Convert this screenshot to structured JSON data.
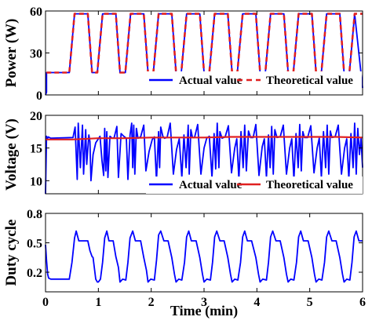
{
  "chart_data": {
    "type": "line",
    "xlabel": "Time (min)",
    "x_ticks": [
      "0",
      "1",
      "2",
      "3",
      "4",
      "5",
      "6"
    ],
    "xlim": [
      0,
      6
    ],
    "panels": [
      {
        "ylabel": "Power (W)",
        "ylim": [
          0,
          60
        ],
        "y_ticks": [
          "0",
          "30",
          "60"
        ],
        "legend": {
          "placement": "bottom-right",
          "entries": [
            "Actual value",
            "Theoretical value"
          ]
        },
        "series": [
          {
            "name": "Actual value",
            "color": "#0000ff",
            "style": "solid",
            "x": [
              0,
              0.02,
              0.02,
              0.45,
              0.55,
              0.8,
              0.88,
              0.98,
              1.08,
              1.33,
              1.41,
              1.51,
              1.61,
              1.86,
              1.94,
              2.04,
              2.14,
              2.39,
              2.47,
              2.57,
              2.67,
              2.92,
              3.0,
              3.1,
              3.2,
              3.45,
              3.53,
              3.63,
              3.73,
              3.98,
              4.06,
              4.16,
              4.26,
              4.51,
              4.59,
              4.69,
              4.79,
              5.04,
              5.12,
              5.22,
              5.32,
              5.57,
              5.65,
              5.75,
              5.85,
              6.0
            ],
            "y": [
              0,
              2,
              16,
              16,
              58,
              58,
              16,
              16,
              58,
              58,
              16,
              16,
              58,
              58,
              16,
              16,
              58,
              58,
              16,
              16,
              58,
              58,
              16,
              16,
              58,
              58,
              16,
              16,
              58,
              58,
              16,
              16,
              58,
              58,
              16,
              16,
              58,
              58,
              16,
              16,
              58,
              58,
              16,
              16,
              58,
              5
            ]
          },
          {
            "name": "Theoretical value",
            "color": "#e02020",
            "style": "dashed",
            "x": [
              0.02,
              0.45,
              0.55,
              0.8,
              0.88,
              0.98,
              1.08,
              1.33,
              1.41,
              1.51,
              1.61,
              1.86,
              1.94,
              2.04,
              2.14,
              2.39,
              2.47,
              2.57,
              2.67,
              2.92,
              3.0,
              3.1,
              3.2,
              3.45,
              3.53,
              3.63,
              3.73,
              3.98,
              4.06,
              4.16,
              4.26,
              4.51,
              4.59,
              4.69,
              4.79,
              5.04,
              5.12,
              5.22,
              5.32,
              5.57,
              5.65,
              5.75,
              5.85,
              6.0
            ],
            "y": [
              16,
              16,
              58,
              58,
              16,
              16,
              58,
              58,
              16,
              16,
              58,
              58,
              16,
              16,
              58,
              58,
              16,
              16,
              58,
              58,
              16,
              16,
              58,
              58,
              16,
              16,
              58,
              58,
              16,
              16,
              58,
              58,
              16,
              16,
              58,
              58,
              16,
              16,
              58,
              58,
              16,
              16,
              58,
              58
            ]
          }
        ]
      },
      {
        "ylabel": "Voltage (V)",
        "ylim": [
          8,
          20
        ],
        "y_ticks": [
          "10",
          "15",
          "20"
        ],
        "legend": {
          "placement": "bottom-right",
          "entries": [
            "Actual value",
            "Theoretical value"
          ]
        },
        "series": [
          {
            "name": "Actual value",
            "color": "#0000ff",
            "style": "solid",
            "x": [
              0,
              0.02,
              0.03,
              0.05,
              0.1,
              0.52,
              0.56,
              0.6,
              0.62,
              0.66,
              0.7,
              0.72,
              0.76,
              0.78,
              0.82,
              0.84,
              0.86,
              0.9,
              0.95,
              1.0,
              1.03,
              1.07,
              1.1,
              1.12,
              1.14,
              1.16,
              1.18,
              1.22,
              1.26,
              1.3,
              1.35,
              1.38,
              1.43,
              1.48,
              1.53,
              1.56,
              1.6,
              1.63,
              1.65,
              1.67,
              1.69,
              1.72,
              1.75,
              1.8,
              1.86,
              1.9,
              1.96,
              2.02,
              2.06,
              2.1,
              2.14,
              2.16,
              2.18,
              2.22,
              2.25,
              2.3,
              2.36,
              2.42,
              2.48,
              2.53,
              2.58,
              2.62,
              2.66,
              2.7,
              2.72,
              2.75,
              2.78,
              2.82,
              2.88,
              2.94,
              3.0,
              3.05,
              3.1,
              3.15,
              3.19,
              3.22,
              3.25,
              3.28,
              3.3,
              3.34,
              3.4,
              3.46,
              3.52,
              3.58,
              3.62,
              3.66,
              3.7,
              3.74,
              3.77,
              3.8,
              3.84,
              3.88,
              3.93,
              3.98,
              4.04,
              4.1,
              4.14,
              4.18,
              4.22,
              4.25,
              4.28,
              4.31,
              4.34,
              4.38,
              4.44,
              4.5,
              4.56,
              4.62,
              4.66,
              4.7,
              4.74,
              4.78,
              4.81,
              4.84,
              4.87,
              4.9,
              4.96,
              5.02,
              5.08,
              5.14,
              5.18,
              5.22,
              5.26,
              5.3,
              5.33,
              5.36,
              5.39,
              5.42,
              5.48,
              5.54,
              5.6,
              5.66,
              5.7,
              5.74,
              5.78,
              5.82,
              5.85,
              5.88,
              5.91,
              5.94,
              5.97,
              6.0
            ],
            "y": [
              8,
              16.8,
              16.3,
              16.7,
              16.5,
              16.6,
              18.2,
              10.2,
              18.8,
              12.0,
              18.5,
              11.0,
              17.8,
              12.5,
              17.0,
              16.0,
              10.0,
              14.0,
              15.8,
              16.4,
              16.8,
              13.0,
              10.8,
              18.0,
              11.5,
              17.5,
              10.5,
              16.8,
              16.5,
              16.6,
              18.3,
              10.5,
              17.2,
              16.8,
              16.5,
              10.2,
              17.0,
              18.8,
              12.0,
              18.5,
              11.0,
              18.0,
              16.5,
              16.7,
              18.5,
              11.5,
              14.5,
              16.3,
              16.7,
              10.0,
              17.5,
              12.0,
              18.2,
              16.8,
              16.5,
              16.6,
              18.8,
              11.0,
              14.8,
              16.4,
              10.5,
              17.0,
              12.0,
              18.5,
              11.0,
              17.8,
              16.6,
              16.6,
              18.6,
              11.0,
              15.0,
              16.5,
              16.8,
              10.5,
              17.2,
              11.8,
              18.8,
              12.0,
              17.5,
              16.5,
              16.7,
              18.4,
              11.2,
              15.0,
              16.4,
              10.2,
              17.5,
              12.0,
              18.5,
              11.5,
              17.6,
              16.6,
              16.6,
              18.6,
              10.8,
              15.2,
              16.4,
              10.5,
              17.0,
              12.0,
              18.3,
              11.0,
              17.8,
              16.6,
              16.7,
              18.5,
              11.0,
              15.0,
              16.4,
              10.2,
              17.2,
              12.0,
              18.6,
              11.5,
              17.5,
              16.6,
              16.6,
              18.4,
              11.2,
              15.0,
              16.5,
              10.5,
              17.5,
              12.0,
              18.5,
              11.0,
              17.6,
              16.6,
              16.7,
              18.5,
              11.0,
              15.0,
              16.4,
              10.3,
              17.2,
              12.0,
              18.8,
              11.0,
              18.0,
              14.0,
              16.5,
              12.0
            ]
          },
          {
            "name": "Theoretical value",
            "color": "#e02020",
            "style": "solid",
            "x": [
              0,
              0.5,
              1.0,
              1.5,
              2.0,
              2.5,
              3.0,
              3.5,
              4.0,
              4.5,
              5.0,
              5.5,
              6.0
            ],
            "y": [
              16.3,
              16.3,
              16.5,
              16.5,
              16.6,
              16.6,
              16.6,
              16.7,
              16.7,
              16.7,
              16.7,
              16.7,
              16.6
            ]
          }
        ]
      },
      {
        "ylabel": "Duty cycle",
        "ylim": [
          0,
          0.8
        ],
        "y_ticks": [
          "0.2",
          "0.5",
          "0.8"
        ],
        "series": [
          {
            "name": "Duty cycle",
            "color": "#0000ff",
            "style": "solid",
            "x": [
              0,
              0.02,
              0.04,
              0.06,
              0.1,
              0.45,
              0.5,
              0.55,
              0.58,
              0.63,
              0.7,
              0.8,
              0.84,
              0.88,
              0.9,
              0.95,
              0.98,
              1.0,
              1.04,
              1.08,
              1.12,
              1.16,
              1.2,
              1.28,
              1.33,
              1.38,
              1.41,
              1.46,
              1.52,
              1.56,
              1.6,
              1.65,
              1.7,
              1.8,
              1.86,
              1.91,
              1.94,
              1.99,
              2.06,
              2.1,
              2.14,
              2.18,
              2.24,
              2.32,
              2.39,
              2.44,
              2.47,
              2.52,
              2.58,
              2.63,
              2.67,
              2.71,
              2.76,
              2.85,
              2.92,
              2.97,
              3.0,
              3.05,
              3.12,
              3.16,
              3.2,
              3.24,
              3.3,
              3.38,
              3.45,
              3.5,
              3.53,
              3.58,
              3.64,
              3.69,
              3.73,
              3.77,
              3.82,
              3.9,
              3.98,
              4.03,
              4.06,
              4.11,
              4.18,
              4.22,
              4.26,
              4.3,
              4.36,
              4.44,
              4.51,
              4.56,
              4.59,
              4.64,
              4.7,
              4.75,
              4.79,
              4.83,
              4.88,
              4.97,
              5.04,
              5.09,
              5.12,
              5.17,
              5.23,
              5.28,
              5.32,
              5.36,
              5.42,
              5.5,
              5.57,
              5.62,
              5.65,
              5.7,
              5.76,
              5.8,
              5.84,
              5.88,
              5.93,
              6.0
            ],
            "y": [
              0.48,
              0.32,
              0.18,
              0.14,
              0.13,
              0.13,
              0.3,
              0.55,
              0.62,
              0.52,
              0.52,
              0.52,
              0.42,
              0.36,
              0.35,
              0.13,
              0.1,
              0.1,
              0.13,
              0.3,
              0.55,
              0.62,
              0.52,
              0.52,
              0.36,
              0.25,
              0.1,
              0.13,
              0.12,
              0.3,
              0.55,
              0.62,
              0.52,
              0.52,
              0.35,
              0.22,
              0.1,
              0.13,
              0.12,
              0.32,
              0.58,
              0.62,
              0.52,
              0.52,
              0.35,
              0.18,
              0.1,
              0.13,
              0.12,
              0.3,
              0.56,
              0.62,
              0.52,
              0.52,
              0.35,
              0.18,
              0.1,
              0.13,
              0.12,
              0.3,
              0.56,
              0.62,
              0.52,
              0.52,
              0.35,
              0.18,
              0.1,
              0.13,
              0.12,
              0.3,
              0.56,
              0.62,
              0.52,
              0.52,
              0.35,
              0.18,
              0.1,
              0.13,
              0.12,
              0.3,
              0.56,
              0.62,
              0.52,
              0.52,
              0.35,
              0.18,
              0.1,
              0.13,
              0.12,
              0.3,
              0.56,
              0.62,
              0.52,
              0.52,
              0.35,
              0.18,
              0.1,
              0.13,
              0.12,
              0.3,
              0.56,
              0.62,
              0.52,
              0.52,
              0.35,
              0.18,
              0.1,
              0.13,
              0.12,
              0.3,
              0.56,
              0.62,
              0.52,
              0.52
            ]
          }
        ]
      }
    ]
  }
}
